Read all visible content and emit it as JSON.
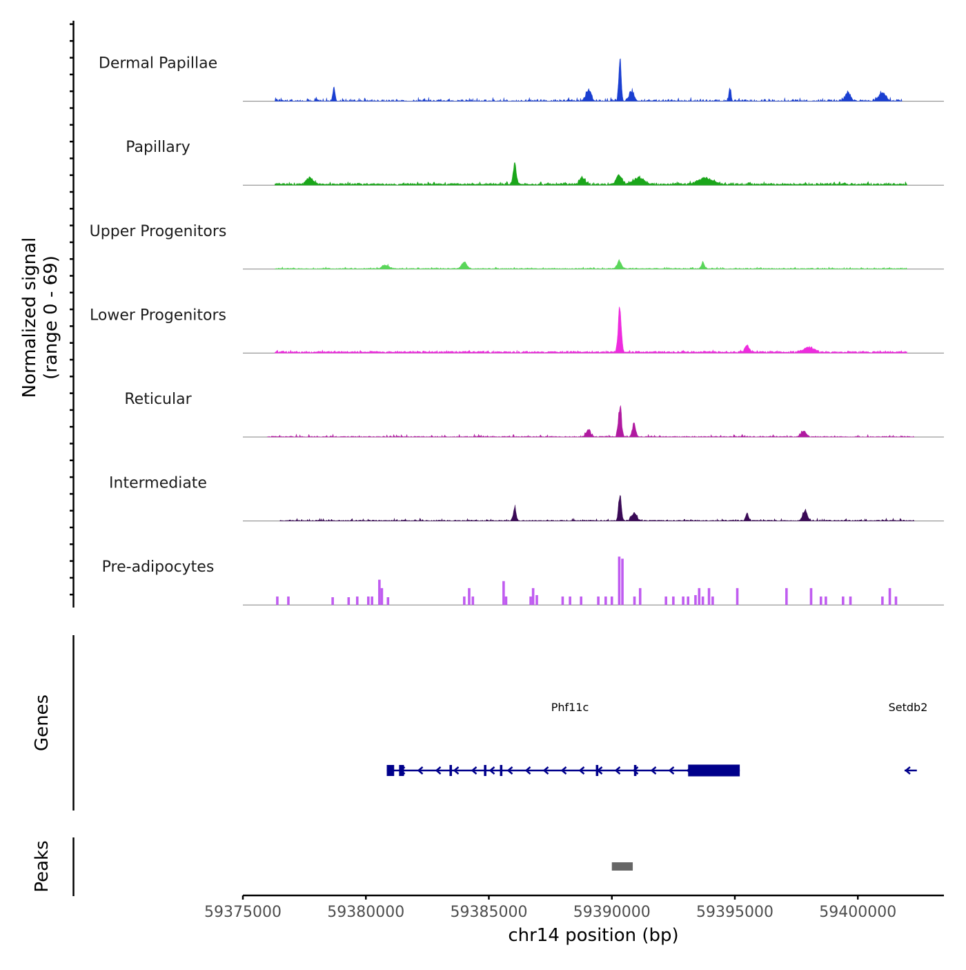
{
  "chart_data": {
    "type": "coverage",
    "title": "",
    "ylabel_line1": "Normalized signal",
    "ylabel_line2": "(range 0 - 69)",
    "yrange": [
      0,
      69
    ],
    "xlabel": "chr14 position (bp)",
    "xlim": [
      59375000,
      59403500
    ],
    "xticks": [
      {
        "value": 59375000,
        "label": "59375000"
      },
      {
        "value": 59380000,
        "label": "59380000"
      },
      {
        "value": 59385000,
        "label": "59385000"
      },
      {
        "value": 59390000,
        "label": "59390000"
      },
      {
        "value": 59395000,
        "label": "59395000"
      },
      {
        "value": 59400000,
        "label": "59400000"
      }
    ],
    "tracks": [
      {
        "name": "Dermal Papillae",
        "color": "#1a3fd1",
        "region": [
          59376300,
          59401800
        ],
        "base": 2,
        "noise": 4,
        "gaps": 0.5,
        "peaks": [
          [
            59378700,
            22,
            60
          ],
          [
            59389050,
            18,
            150
          ],
          [
            59390330,
            69,
            70
          ],
          [
            59390800,
            15,
            150
          ],
          [
            59394800,
            22,
            60
          ],
          [
            59399600,
            14,
            150
          ],
          [
            59401000,
            14,
            200
          ]
        ]
      },
      {
        "name": "Papillary",
        "color": "#1aa61a",
        "region": [
          59376300,
          59402000
        ],
        "base": 2,
        "noise": 3,
        "gaps": 0.05,
        "peaks": [
          [
            59377700,
            10,
            200
          ],
          [
            59386050,
            32,
            90
          ],
          [
            59388800,
            12,
            150
          ],
          [
            59390300,
            17,
            150
          ],
          [
            59391100,
            10,
            300
          ],
          [
            59393800,
            10,
            400
          ]
        ]
      },
      {
        "name": "Upper Progenitors",
        "color": "#5ad65a",
        "region": [
          59376300,
          59402000
        ],
        "base": 1,
        "noise": 2,
        "gaps": 0.05,
        "peaks": [
          [
            59380800,
            6,
            200
          ],
          [
            59384000,
            11,
            150
          ],
          [
            59390300,
            14,
            120
          ],
          [
            59393700,
            11,
            80
          ]
        ]
      },
      {
        "name": "Lower Progenitors",
        "color": "#ee2bde",
        "region": [
          59376300,
          59402000
        ],
        "base": 2,
        "noise": 2,
        "gaps": 0.05,
        "peaks": [
          [
            59390320,
            68,
            90
          ],
          [
            59395500,
            12,
            120
          ],
          [
            59398000,
            8,
            300
          ]
        ]
      },
      {
        "name": "Reticular",
        "color": "#b01aa0",
        "region": [
          59376000,
          59402300
        ],
        "base": 1,
        "noise": 3,
        "gaps": 0.3,
        "peaks": [
          [
            59389050,
            12,
            120
          ],
          [
            59390330,
            50,
            90
          ],
          [
            59390900,
            22,
            90
          ],
          [
            59397800,
            9,
            150
          ]
        ]
      },
      {
        "name": "Intermediate",
        "color": "#3a0a56",
        "region": [
          59376500,
          59402300
        ],
        "base": 1,
        "noise": 3,
        "gaps": 0.25,
        "peaks": [
          [
            59386050,
            22,
            80
          ],
          [
            59390330,
            44,
            80
          ],
          [
            59390900,
            12,
            150
          ],
          [
            59395500,
            12,
            80
          ],
          [
            59397850,
            18,
            120
          ]
        ]
      },
      {
        "name": "Pre-adipocytes",
        "color": "#c05cf0",
        "region": [
          59376300,
          59401800
        ],
        "base": 0,
        "noise": 0,
        "gaps": 0,
        "spikes": [
          [
            59376400,
            12
          ],
          [
            59376850,
            12
          ],
          [
            59378650,
            11
          ],
          [
            59379300,
            11
          ],
          [
            59379650,
            12
          ],
          [
            59380100,
            12
          ],
          [
            59380250,
            12
          ],
          [
            59380550,
            36
          ],
          [
            59380650,
            24
          ],
          [
            59380900,
            11
          ],
          [
            59384000,
            12
          ],
          [
            59384200,
            24
          ],
          [
            59384350,
            12
          ],
          [
            59385600,
            34
          ],
          [
            59385700,
            12
          ],
          [
            59386700,
            12
          ],
          [
            59386800,
            24
          ],
          [
            59386950,
            14
          ],
          [
            59388000,
            12
          ],
          [
            59388300,
            12
          ],
          [
            59388750,
            12
          ],
          [
            59389450,
            12
          ],
          [
            59389750,
            12
          ],
          [
            59390000,
            12
          ],
          [
            59390300,
            69
          ],
          [
            59390430,
            66
          ],
          [
            59390920,
            12
          ],
          [
            59391150,
            24
          ],
          [
            59392200,
            12
          ],
          [
            59392500,
            12
          ],
          [
            59392900,
            12
          ],
          [
            59393100,
            12
          ],
          [
            59393400,
            14
          ],
          [
            59393550,
            24
          ],
          [
            59393700,
            12
          ],
          [
            59393950,
            24
          ],
          [
            59394100,
            12
          ],
          [
            59395100,
            24
          ],
          [
            59397100,
            24
          ],
          [
            59398100,
            24
          ],
          [
            59398500,
            12
          ],
          [
            59398700,
            12
          ],
          [
            59399400,
            12
          ],
          [
            59399700,
            12
          ],
          [
            59401000,
            12
          ],
          [
            59401300,
            24
          ],
          [
            59401550,
            12
          ]
        ]
      }
    ],
    "genes_label": "Genes",
    "genes": [
      {
        "name": "Phf11c",
        "start": 59380850,
        "end": 59395200,
        "strand": "-",
        "exons": [
          [
            59380850,
            59381150
          ],
          [
            59381350,
            59381550
          ],
          [
            59383400,
            59383500
          ],
          [
            59384800,
            59384900
          ],
          [
            59385450,
            59385550
          ],
          [
            59389350,
            59389450
          ],
          [
            59390900,
            59391000
          ],
          [
            59393100,
            59395200
          ]
        ]
      },
      {
        "name": "Setdb2",
        "start": 59401900,
        "end": 59402400,
        "strand": "-",
        "exons": []
      }
    ],
    "peaks_label": "Peaks",
    "peaks": [
      {
        "start": 59390000,
        "end": 59390850
      }
    ]
  }
}
